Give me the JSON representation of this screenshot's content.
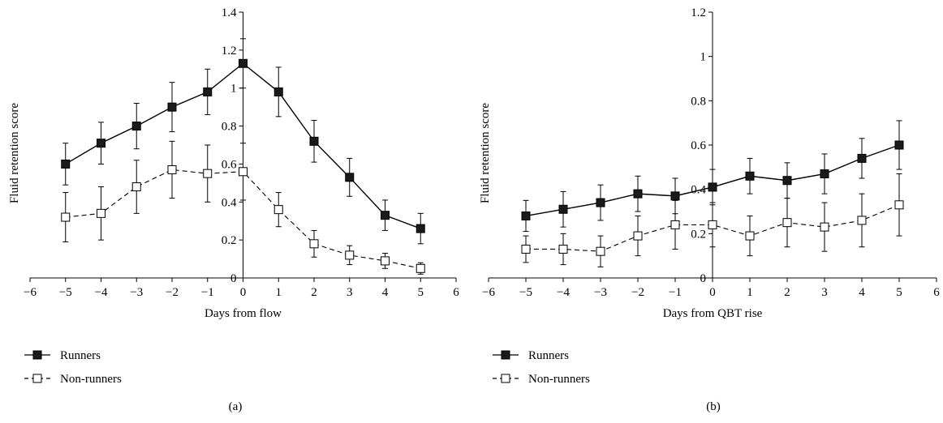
{
  "chart_data": [
    {
      "type": "line",
      "panel_label": "(a)",
      "xlabel": "Days from flow",
      "ylabel": "Fluid retention score",
      "xlim": [
        -6,
        6
      ],
      "ylim": [
        0,
        1.4
      ],
      "x_ticks": [
        -6,
        -5,
        -4,
        -3,
        -2,
        -1,
        0,
        1,
        2,
        3,
        4,
        5,
        6
      ],
      "y_ticks": [
        0,
        0.2,
        0.4,
        0.6,
        0.8,
        1,
        1.2,
        1.4
      ],
      "x_tick_labels": [
        "−6",
        "−5",
        "−4",
        "−3",
        "−2",
        "−1",
        "0",
        "1",
        "2",
        "3",
        "4",
        "5",
        "6"
      ],
      "y_tick_labels": [
        "0",
        "0.2",
        "0.4",
        "0.6",
        "0.8",
        "1",
        "1.2",
        "1.4"
      ],
      "x": [
        -5,
        -4,
        -3,
        -2,
        -1,
        0,
        1,
        2,
        3,
        4,
        5
      ],
      "series": [
        {
          "name": "Runners",
          "marker": "filled-square",
          "line": "solid",
          "values": [
            0.6,
            0.71,
            0.8,
            0.9,
            0.98,
            1.13,
            0.98,
            0.72,
            0.53,
            0.33,
            0.26
          ],
          "errors": [
            0.11,
            0.11,
            0.12,
            0.13,
            0.12,
            0.13,
            0.13,
            0.11,
            0.1,
            0.08,
            0.08
          ]
        },
        {
          "name": "Non-runners",
          "marker": "open-square",
          "line": "dashed",
          "values": [
            0.32,
            0.34,
            0.48,
            0.57,
            0.55,
            0.56,
            0.36,
            0.18,
            0.12,
            0.09,
            0.05
          ],
          "errors": [
            0.13,
            0.14,
            0.14,
            0.15,
            0.15,
            0.15,
            0.09,
            0.07,
            0.05,
            0.04,
            0.03
          ]
        }
      ]
    },
    {
      "type": "line",
      "panel_label": "(b)",
      "xlabel": "Days from QBT rise",
      "ylabel": "Fluid retention score",
      "xlim": [
        -6,
        6
      ],
      "ylim": [
        0,
        1.2
      ],
      "x_ticks": [
        -6,
        -5,
        -4,
        -3,
        -2,
        -1,
        0,
        1,
        2,
        3,
        4,
        5,
        6
      ],
      "y_ticks": [
        0,
        0.2,
        0.4,
        0.6,
        0.8,
        1,
        1.2
      ],
      "x_tick_labels": [
        "−6",
        "−5",
        "−4",
        "−3",
        "−2",
        "−1",
        "0",
        "1",
        "2",
        "3",
        "4",
        "5",
        "6"
      ],
      "y_tick_labels": [
        "0",
        "0.2",
        "0.4",
        "0.6",
        "0.8",
        "1",
        "1.2"
      ],
      "x": [
        -5,
        -4,
        -3,
        -2,
        -1,
        0,
        1,
        2,
        3,
        4,
        5
      ],
      "series": [
        {
          "name": "Runners",
          "marker": "filled-square",
          "line": "solid",
          "values": [
            0.28,
            0.31,
            0.34,
            0.38,
            0.37,
            0.41,
            0.46,
            0.44,
            0.47,
            0.54,
            0.6
          ],
          "errors": [
            0.07,
            0.08,
            0.08,
            0.08,
            0.08,
            0.08,
            0.08,
            0.08,
            0.09,
            0.09,
            0.11
          ]
        },
        {
          "name": "Non-runners",
          "marker": "open-square",
          "line": "dashed",
          "values": [
            0.13,
            0.13,
            0.12,
            0.19,
            0.24,
            0.24,
            0.19,
            0.25,
            0.23,
            0.26,
            0.33
          ],
          "errors": [
            0.06,
            0.07,
            0.07,
            0.09,
            0.11,
            0.1,
            0.09,
            0.11,
            0.11,
            0.12,
            0.14
          ]
        }
      ]
    }
  ]
}
